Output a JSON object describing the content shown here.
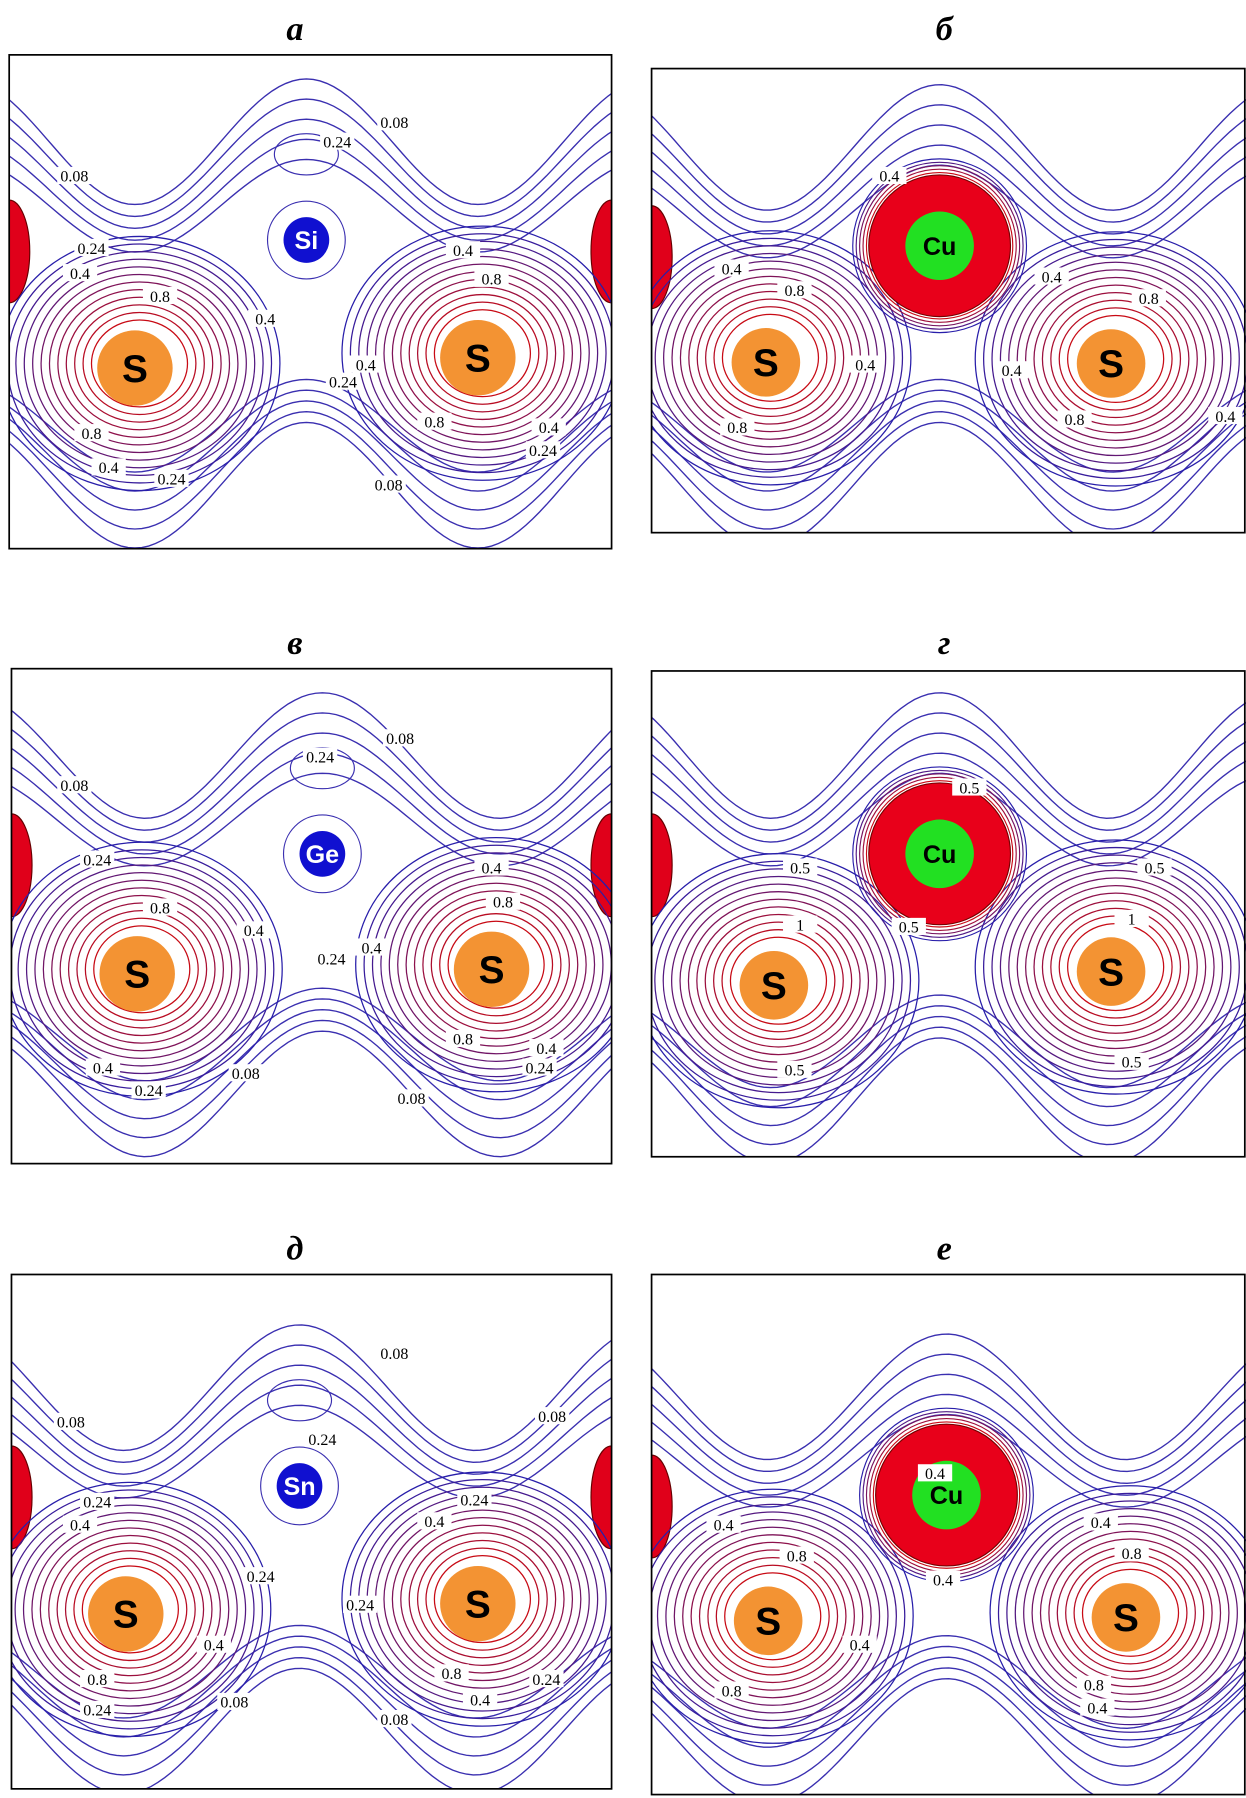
{
  "panels": [
    {
      "label": "а",
      "atoms": [
        "Si",
        "S",
        "S"
      ],
      "contour_labels": [
        "0.08",
        "0.24",
        "0.08",
        "0.24",
        "0.4",
        "0.8",
        "0.4",
        "0.8",
        "0.4",
        "0.4",
        "0.24",
        "0.8",
        "0.4",
        "0.24",
        "0.8",
        "0.4",
        "0.24",
        "0.08"
      ]
    },
    {
      "label": "б",
      "atoms": [
        "Cu",
        "S",
        "S"
      ],
      "contour_labels": [
        "0.4",
        "0.4",
        "0.8",
        "0.4",
        "0.8",
        "0.4",
        "0.4",
        "0.8",
        "0.8",
        "0.4"
      ]
    },
    {
      "label": "в",
      "atoms": [
        "Ge",
        "S",
        "S"
      ],
      "contour_labels": [
        "0.08",
        "0.24",
        "0.08",
        "0.24",
        "0.4",
        "0.8",
        "0.8",
        "0.4",
        "0.24",
        "0.4",
        "0.8",
        "0.4",
        "0.24",
        "0.08",
        "0.4",
        "0.24",
        "0.08"
      ]
    },
    {
      "label": "г",
      "atoms": [
        "Cu",
        "S",
        "S"
      ],
      "contour_labels": [
        "0.5",
        "0.5",
        "0.5",
        "0.5",
        "1",
        "1",
        "0.5",
        "0.5"
      ]
    },
    {
      "label": "д",
      "atoms": [
        "Sn",
        "S",
        "S"
      ],
      "contour_labels": [
        "0.08",
        "0.08",
        "0.08",
        "0.24",
        "0.24",
        "0.4",
        "0.24",
        "0.4",
        "0.24",
        "0.24",
        "0.4",
        "0.8",
        "0.24",
        "0.08",
        "0.8",
        "0.4",
        "0.24",
        "0.08"
      ]
    },
    {
      "label": "е",
      "atoms": [
        "Cu",
        "S",
        "S"
      ],
      "contour_labels": [
        "0.4",
        "0.4",
        "0.8",
        "0.4",
        "0.8",
        "0.4",
        "0.4",
        "0.8",
        "0.8",
        "0.4"
      ]
    }
  ]
}
